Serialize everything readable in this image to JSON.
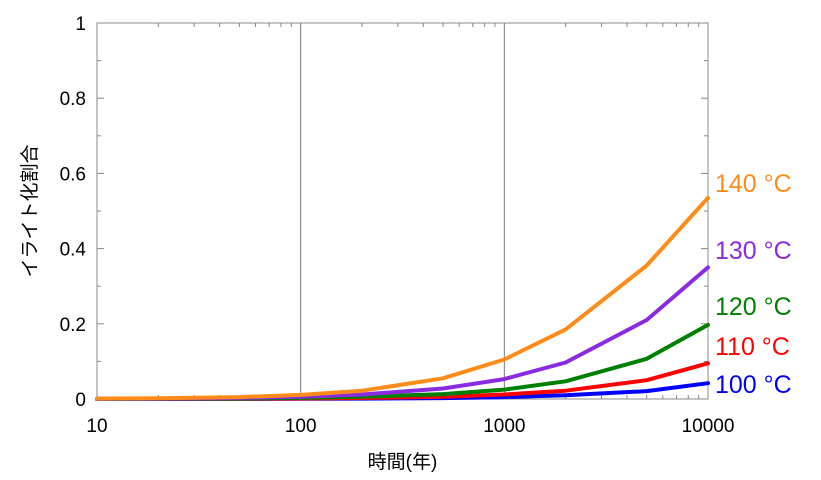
{
  "chart_data": {
    "type": "line",
    "title": "",
    "xlabel": "時間(年)",
    "ylabel": "イライト化割合",
    "xscale": "log",
    "xlim": [
      10,
      10000
    ],
    "ylim": [
      0,
      1
    ],
    "xticks": [
      10,
      100,
      1000,
      10000
    ],
    "xtick_labels": [
      "10",
      "100",
      "1000",
      "10000"
    ],
    "yticks": [
      0,
      0.2,
      0.4,
      0.6,
      0.8,
      1
    ],
    "ytick_labels": [
      "0",
      "0.2",
      "0.4",
      "0.6",
      "0.8",
      "1"
    ],
    "grid": "vertical lines at decades",
    "legend": "series labels at right end of lines",
    "x": [
      10,
      20,
      50,
      100,
      200,
      500,
      1000,
      2000,
      5000,
      10000
    ],
    "series": [
      {
        "name": "140 °C",
        "color": "#ff8c1a",
        "values": [
          0.001,
          0.002,
          0.005,
          0.011,
          0.022,
          0.055,
          0.105,
          0.185,
          0.355,
          0.535
        ]
      },
      {
        "name": "130 °C",
        "color": "#8a2be2",
        "values": [
          0.0005,
          0.001,
          0.003,
          0.006,
          0.012,
          0.028,
          0.053,
          0.097,
          0.21,
          0.35
        ]
      },
      {
        "name": "120 °C",
        "color": "#008000",
        "values": [
          0.0002,
          0.0005,
          0.0013,
          0.003,
          0.006,
          0.013,
          0.025,
          0.047,
          0.107,
          0.197
        ]
      },
      {
        "name": "110 °C",
        "color": "#ff0000",
        "values": [
          0.0001,
          0.0002,
          0.0006,
          0.0013,
          0.0026,
          0.006,
          0.012,
          0.022,
          0.05,
          0.095
        ]
      },
      {
        "name": "100 °C",
        "color": "#0000ff",
        "values": [
          0.0001,
          0.0001,
          0.0003,
          0.0005,
          0.001,
          0.0025,
          0.005,
          0.01,
          0.021,
          0.042
        ]
      }
    ]
  }
}
